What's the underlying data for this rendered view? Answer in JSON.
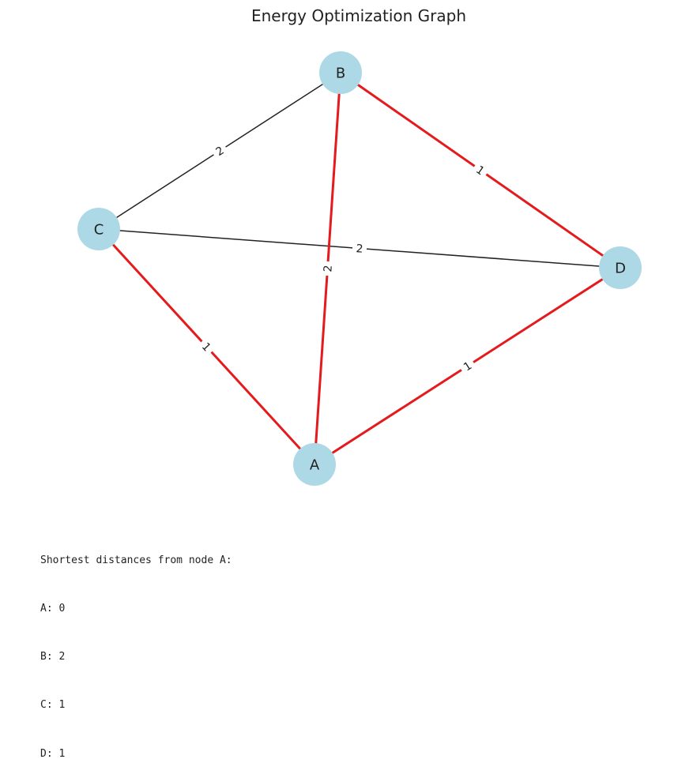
{
  "title": "Energy Optimization Graph",
  "node_color": "#add8e6",
  "edge_color": "#222222",
  "highlight_color": "#e41a1c",
  "nodes": [
    {
      "id": "A",
      "label": "A"
    },
    {
      "id": "B",
      "label": "B"
    },
    {
      "id": "C",
      "label": "C"
    },
    {
      "id": "D",
      "label": "D"
    }
  ],
  "edges": [
    {
      "source": "B",
      "target": "C",
      "weight": "2",
      "highlighted": false
    },
    {
      "source": "C",
      "target": "D",
      "weight": "2",
      "highlighted": false
    },
    {
      "source": "B",
      "target": "D",
      "weight": "1",
      "highlighted": true
    },
    {
      "source": "A",
      "target": "B",
      "weight": "2",
      "highlighted": true
    },
    {
      "source": "A",
      "target": "C",
      "weight": "1",
      "highlighted": true
    },
    {
      "source": "A",
      "target": "D",
      "weight": "1",
      "highlighted": true
    }
  ],
  "output": {
    "heading": "Shortest distances from node A:",
    "lines": [
      "A: 0",
      "B: 2",
      "C: 1",
      "D: 1"
    ]
  }
}
